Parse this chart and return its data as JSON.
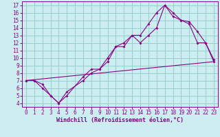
{
  "title": "",
  "xlabel": "Windchill (Refroidissement éolien,°C)",
  "xlim": [
    -0.5,
    23.5
  ],
  "ylim": [
    3.5,
    17.5
  ],
  "xticks": [
    0,
    1,
    2,
    3,
    4,
    5,
    6,
    7,
    8,
    9,
    10,
    11,
    12,
    13,
    14,
    15,
    16,
    17,
    18,
    19,
    20,
    21,
    22,
    23
  ],
  "yticks": [
    4,
    5,
    6,
    7,
    8,
    9,
    10,
    11,
    12,
    13,
    14,
    15,
    16,
    17
  ],
  "bg_color": "#cceef0",
  "line_color": "#880088",
  "grid_color": "#99cccc",
  "line1_x": [
    0,
    1,
    2,
    3,
    4,
    5,
    7,
    8,
    9,
    10,
    11,
    12,
    13,
    14,
    15,
    16,
    17,
    18,
    19,
    20,
    21,
    22,
    23
  ],
  "line1_y": [
    7,
    7,
    6.5,
    5,
    4,
    5.5,
    7,
    8,
    8.5,
    9.5,
    11.5,
    12,
    13,
    12,
    13,
    14,
    17,
    16,
    15,
    14.5,
    12,
    12,
    9.5
  ],
  "line2_x": [
    0,
    1,
    2,
    3,
    4,
    5,
    7,
    8,
    9,
    10,
    11,
    12,
    13,
    14,
    15,
    16,
    17,
    18,
    19,
    20,
    21,
    22,
    23
  ],
  "line2_y": [
    7,
    7,
    6,
    5,
    4,
    5,
    7.5,
    8.5,
    8.5,
    10,
    11.5,
    11.5,
    13,
    13,
    14.5,
    16,
    17,
    15.5,
    15,
    14.8,
    13.5,
    12,
    9.8
  ],
  "line3_x": [
    0,
    23
  ],
  "line3_y": [
    7,
    9.5
  ],
  "tick_fontsize": 5.5,
  "xlabel_fontsize": 6.0
}
